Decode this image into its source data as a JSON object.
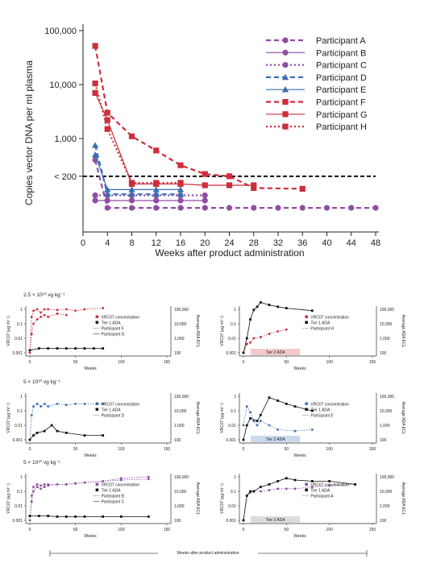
{
  "colors": {
    "purple": "#8e4fa3",
    "blue": "#3b6fb0",
    "red": "#cc2f3c",
    "black": "#111111",
    "gray": "#999999"
  },
  "chart_data": [
    {
      "type": "line",
      "title": "",
      "xlabel": "Weeks after product administration",
      "ylabel": "Copies vector DNA per ml plasma",
      "xlim": [
        0,
        48
      ],
      "x_ticks": [
        "0",
        "4",
        "8",
        "12",
        "16",
        "20",
        "24",
        "28",
        "32",
        "36",
        "40",
        "44",
        "48"
      ],
      "y_scale": "log",
      "y_ticks": [
        "100,000",
        "10,000",
        "1,000",
        "< 200"
      ],
      "threshold_label": "< 200",
      "threshold_value": 200,
      "below_lloq_note": "values below 200 are plotted below the dashed limit line",
      "legend_position": "top-right",
      "series": [
        {
          "name": "Participant A",
          "color": "#8e4fa3",
          "line": "dashed",
          "marker": "circle",
          "x": [
            2,
            4,
            8,
            12,
            16,
            20,
            24,
            28,
            32,
            36,
            40,
            44,
            48
          ],
          "y": [
            400,
            40,
            40,
            40,
            40,
            40,
            40,
            40,
            40,
            40,
            40,
            40,
            40
          ]
        },
        {
          "name": "Participant B",
          "color": "#8e4fa3",
          "line": "solid",
          "marker": "circle",
          "x": [
            2,
            4,
            8,
            12,
            16,
            20
          ],
          "y": [
            60,
            60,
            60,
            60,
            60,
            60
          ]
        },
        {
          "name": "Participant C",
          "color": "#8e4fa3",
          "line": "dotted",
          "marker": "circle",
          "x": [
            2,
            4,
            8,
            12,
            16,
            20
          ],
          "y": [
            80,
            80,
            80,
            80,
            80,
            80
          ]
        },
        {
          "name": "Participant D",
          "color": "#3b6fb0",
          "line": "dashed",
          "marker": "triangle",
          "x": [
            2,
            4,
            8,
            12,
            16
          ],
          "y": [
            750,
            85,
            85,
            85,
            85
          ]
        },
        {
          "name": "Participant E",
          "color": "#3b6fb0",
          "line": "solid",
          "marker": "triangle",
          "x": [
            2,
            4,
            8,
            12,
            16
          ],
          "y": [
            500,
            110,
            110,
            110,
            110
          ]
        },
        {
          "name": "Participant F",
          "color": "#cc2f3c",
          "line": "dashed",
          "marker": "square",
          "x": [
            2,
            4,
            8,
            12,
            16,
            20,
            24,
            28,
            36
          ],
          "y": [
            52000,
            3000,
            1100,
            600,
            320,
            220,
            200,
            120,
            115
          ]
        },
        {
          "name": "Participant G",
          "color": "#cc2f3c",
          "line": "solid",
          "marker": "square",
          "x": [
            2,
            4,
            8,
            12,
            16,
            20,
            24,
            28
          ],
          "y": [
            7000,
            2200,
            150,
            150,
            150,
            140,
            140,
            140
          ]
        },
        {
          "name": "Participant H",
          "color": "#cc2f3c",
          "line": "dotted",
          "marker": "square",
          "x": [
            2,
            4,
            8,
            12,
            16
          ],
          "y": [
            10500,
            1500,
            160,
            160,
            160
          ]
        }
      ]
    },
    {
      "type": "line",
      "panel_title": "2.5 × 10¹⁰ vg kg⁻¹",
      "xlabel": "Weeks",
      "ylabel": "VRC07 (µg ml⁻¹)",
      "y2label": "Average ADA ECL",
      "x_ticks": [
        "0",
        "50",
        "100",
        "150"
      ],
      "y_ticks": [
        "1",
        "0.1",
        "0.01",
        "0.001"
      ],
      "y2_ticks": [
        "100,000",
        "10,000",
        "1,000",
        "100"
      ],
      "legend": [
        "VRC07 concentration",
        "Tier 1 ADA",
        "Participant F",
        "Participant G"
      ],
      "series": [
        {
          "name": "Participant F",
          "color": "#cc2f3c",
          "x": [
            0,
            2,
            4,
            8,
            12,
            16,
            20,
            30,
            40,
            50,
            60,
            80
          ],
          "y": [
            0.001,
            0.3,
            0.8,
            1,
            0.6,
            1,
            1,
            0.9,
            1,
            0.8,
            1,
            1.2
          ]
        },
        {
          "name": "Participant G",
          "color": "#cc2f3c",
          "x": [
            0,
            2,
            4,
            8,
            12,
            16,
            20,
            30,
            40
          ],
          "y": [
            0.001,
            0.02,
            0.1,
            0.2,
            0.3,
            0.4,
            0.3,
            0.5,
            0.4
          ]
        },
        {
          "name": "Tier 1 ADA",
          "color": "#111111",
          "x": [
            0,
            10,
            20,
            30,
            40,
            50,
            60,
            70,
            80
          ],
          "y": [
            0.0015,
            0.002,
            0.002,
            0.002,
            0.002,
            0.002,
            0.002,
            0.002,
            0.002
          ]
        }
      ]
    },
    {
      "type": "line",
      "xlabel": "Weeks",
      "ylabel": "VRC07 (µg ml⁻¹)",
      "y2label": "Average ADA ECL",
      "x_ticks": [
        "0",
        "50",
        "100",
        "150"
      ],
      "y_ticks": [
        "1",
        "0.1",
        "0.01",
        "0.001"
      ],
      "y2_ticks": [
        "100,000",
        "10,000",
        "1,000",
        "100"
      ],
      "legend": [
        "VRC07 concentration",
        "Tier 1 ADA",
        "Participant H"
      ],
      "band_label": "Tier 2 ADA",
      "series": [
        {
          "name": "Participant H",
          "color": "#cc2f3c",
          "x": [
            0,
            4,
            8,
            12,
            20,
            30,
            40,
            50
          ],
          "y": [
            0.001,
            0.004,
            0.005,
            0.01,
            0.012,
            0.02,
            0.03,
            0.04
          ]
        },
        {
          "name": "Tier 1 ADA",
          "color": "#111111",
          "x": [
            0,
            4,
            8,
            12,
            16,
            20,
            30,
            40,
            50,
            80
          ],
          "y": [
            0.001,
            0.01,
            0.2,
            0.9,
            1.5,
            3,
            2,
            1.5,
            1.2,
            0.8
          ]
        }
      ]
    },
    {
      "type": "line",
      "panel_title": "5 × 10¹⁰ vg kg⁻¹",
      "xlabel": "Weeks",
      "ylabel": "VRC07 (µg ml⁻¹)",
      "y2label": "Average ADA ECL",
      "x_ticks": [
        "0",
        "50",
        "100",
        "150"
      ],
      "y_ticks": [
        "1",
        "0.1",
        "0.01",
        "0.001"
      ],
      "y2_ticks": [
        "100,000",
        "10,000",
        "1,000",
        "100"
      ],
      "legend": [
        "VRC07 concentration",
        "Tier 1 ADA",
        "Participant D"
      ],
      "series": [
        {
          "name": "Participant D",
          "color": "#3b6fb0",
          "x": [
            0,
            2,
            4,
            8,
            12,
            16,
            20,
            30,
            40,
            50,
            60,
            80
          ],
          "y": [
            0.001,
            0.05,
            0.2,
            0.3,
            0.2,
            0.3,
            0.2,
            0.3,
            0.25,
            0.3,
            0.3,
            0.3
          ]
        },
        {
          "name": "Tier 1 ADA",
          "color": "#111111",
          "x": [
            0,
            4,
            8,
            16,
            24,
            30,
            40,
            60,
            80
          ],
          "y": [
            0.001,
            0.002,
            0.003,
            0.004,
            0.01,
            0.004,
            0.003,
            0.002,
            0.002
          ]
        }
      ]
    },
    {
      "type": "line",
      "xlabel": "Weeks",
      "ylabel": "VRC07 (µg ml⁻¹)",
      "y2label": "Average ADA ECL",
      "x_ticks": [
        "0",
        "50",
        "100",
        "150"
      ],
      "y_ticks": [
        "1",
        "0.1",
        "0.01",
        "0.001"
      ],
      "y2_ticks": [
        "100,000",
        "10,000",
        "1,000",
        "100"
      ],
      "legend": [
        "VRC07 concentration",
        "Tier 1 ADA",
        "Participant E"
      ],
      "band_label": "Tier 2 ADA",
      "series": [
        {
          "name": "Participant E",
          "color": "#3b6fb0",
          "x": [
            0,
            4,
            8,
            12,
            16,
            20,
            30,
            40,
            60,
            80
          ],
          "y": [
            0.01,
            0.2,
            0.08,
            0.02,
            0.01,
            0.02,
            0.01,
            0.005,
            0.004,
            0.005
          ]
        },
        {
          "name": "Tier 1 ADA",
          "color": "#111111",
          "x": [
            0,
            4,
            8,
            16,
            20,
            30,
            40,
            50,
            60,
            80
          ],
          "y": [
            0.001,
            0.01,
            0.03,
            0.02,
            0.05,
            0.8,
            0.5,
            0.3,
            0.2,
            0.1
          ]
        }
      ]
    },
    {
      "type": "line",
      "panel_title": "5 × 10¹⁰ vg kg⁻¹",
      "xlabel": "Weeks",
      "ylabel": "VRC07 (µg ml⁻¹)",
      "y2label": "Average ADA ECL",
      "x_ticks": [
        "0",
        "50",
        "100",
        "150"
      ],
      "y_ticks": [
        "1",
        "0.1",
        "0.01",
        "0.001"
      ],
      "y2_ticks": [
        "100,000",
        "10,000",
        "1,000",
        "100"
      ],
      "legend": [
        "VRC07 concentration",
        "Tier 1 ADA",
        "Participant B",
        "Participant C"
      ],
      "series": [
        {
          "name": "Participant B",
          "color": "#8e4fa3",
          "x": [
            0,
            2,
            4,
            8,
            12,
            16,
            20,
            30,
            40,
            50,
            60,
            80,
            100,
            130
          ],
          "y": [
            0.001,
            0.05,
            0.2,
            0.3,
            0.25,
            0.3,
            0.3,
            0.3,
            0.3,
            0.35,
            0.4,
            0.5,
            0.8,
            1
          ]
        },
        {
          "name": "Participant C",
          "color": "#8e4fa3",
          "x": [
            0,
            2,
            4,
            8,
            12,
            16,
            20,
            30,
            40,
            50,
            60,
            80,
            100,
            130
          ],
          "y": [
            0.001,
            0.02,
            0.1,
            0.2,
            0.15,
            0.2,
            0.25,
            0.3,
            0.3,
            0.35,
            0.4,
            0.5,
            0.6,
            0.7
          ]
        },
        {
          "name": "Tier 1 ADA",
          "color": "#111111",
          "x": [
            0,
            10,
            20,
            30,
            40,
            50,
            60,
            80,
            100,
            130
          ],
          "y": [
            0.002,
            0.002,
            0.002,
            0.0018,
            0.0018,
            0.0018,
            0.0018,
            0.0018,
            0.0018,
            0.0018
          ]
        }
      ]
    },
    {
      "type": "line",
      "xlabel": "Weeks",
      "ylabel": "VRC07 (µg ml⁻¹)",
      "y2label": "Average ADA ECL",
      "x_ticks": [
        "0",
        "50",
        "100",
        "150"
      ],
      "y_ticks": [
        "1",
        "0.1",
        "0.01",
        "0.001"
      ],
      "y2_ticks": [
        "100,000",
        "10,000",
        "1,000",
        "100"
      ],
      "legend": [
        "VRC07 concentration",
        "Tier 1 ADA",
        "Participant A"
      ],
      "band_label": "Tier 2 ADA",
      "series": [
        {
          "name": "Participant A",
          "color": "#8e4fa3",
          "x": [
            0,
            4,
            8,
            12,
            20,
            30,
            40,
            50,
            60,
            80,
            100,
            130
          ],
          "y": [
            0.001,
            0.05,
            0.08,
            0.1,
            0.1,
            0.12,
            0.15,
            0.15,
            0.15,
            0.2,
            0.25,
            0.3
          ]
        },
        {
          "name": "Tier 1 ADA",
          "color": "#111111",
          "x": [
            0,
            4,
            8,
            12,
            20,
            30,
            40,
            50,
            60,
            80,
            100,
            130
          ],
          "y": [
            0.001,
            0.05,
            0.1,
            0.1,
            0.2,
            0.3,
            0.5,
            0.8,
            0.6,
            0.5,
            0.5,
            0.3
          ]
        }
      ]
    }
  ],
  "footer": {
    "caption": "Weeks after product administration"
  }
}
